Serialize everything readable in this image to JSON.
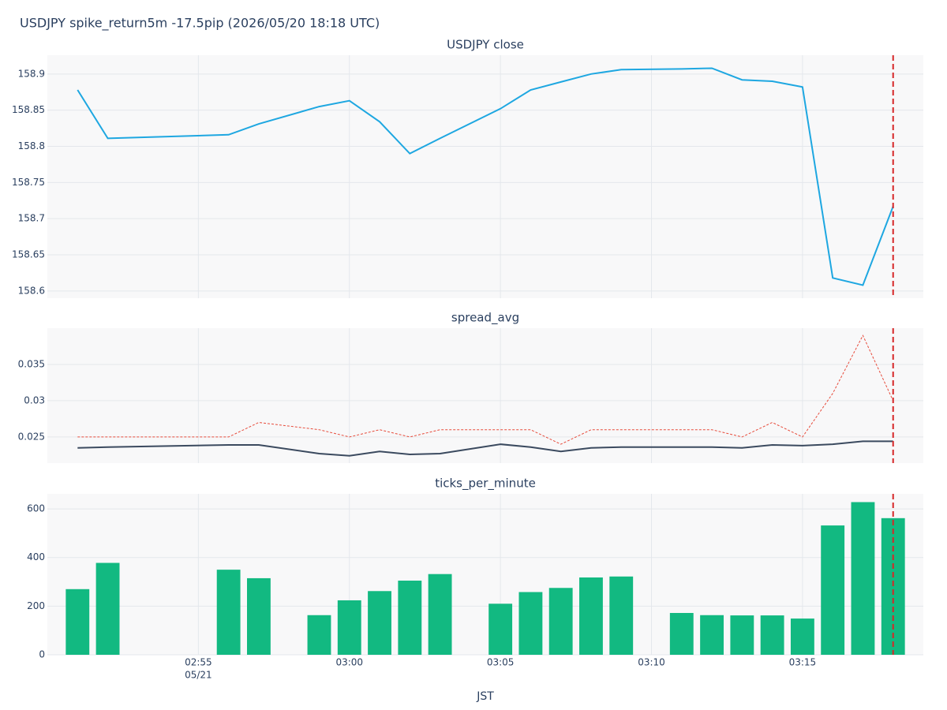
{
  "title": "USDJPY spike_return5m -17.5pip (2026/05/20 18:18 UTC)",
  "event_x": "03:18",
  "chart_data": [
    {
      "type": "line",
      "title": "USDJPY close",
      "x": [
        "02:51",
        "02:52",
        "02:56",
        "02:57",
        "02:59",
        "03:00",
        "03:01",
        "03:02",
        "03:03",
        "03:05",
        "03:06",
        "03:07",
        "03:08",
        "03:09",
        "03:11",
        "03:12",
        "03:13",
        "03:14",
        "03:15",
        "03:16",
        "03:17",
        "03:18"
      ],
      "series": [
        {
          "color": "#1ea7e1",
          "values": [
            158.878,
            158.811,
            158.816,
            158.831,
            158.855,
            158.863,
            158.834,
            158.79,
            158.811,
            158.852,
            158.878,
            158.889,
            158.9,
            158.906,
            158.907,
            158.908,
            158.892,
            158.89,
            158.882,
            158.618,
            158.608,
            158.717
          ]
        }
      ],
      "ylim": [
        158.59,
        158.926
      ],
      "yticks": [
        158.6,
        158.65,
        158.7,
        158.75,
        158.8,
        158.85,
        158.9
      ],
      "grid": true
    },
    {
      "type": "line",
      "title": "spread_avg",
      "x": [
        "02:51",
        "02:52",
        "02:56",
        "02:57",
        "02:59",
        "03:00",
        "03:01",
        "03:02",
        "03:03",
        "03:05",
        "03:06",
        "03:07",
        "03:08",
        "03:09",
        "03:11",
        "03:12",
        "03:13",
        "03:14",
        "03:15",
        "03:16",
        "03:17",
        "03:18"
      ],
      "series": [
        {
          "color": "#e74c3c",
          "dash": "dotted",
          "values": [
            0.025,
            0.025,
            0.025,
            0.027,
            0.026,
            0.025,
            0.026,
            0.025,
            0.026,
            0.026,
            0.026,
            0.024,
            0.026,
            0.026,
            0.026,
            0.026,
            0.025,
            0.027,
            0.025,
            0.031,
            0.039,
            0.03
          ]
        },
        {
          "color": "#3b4a5f",
          "values": [
            0.0235,
            0.0236,
            0.0239,
            0.0239,
            0.0227,
            0.0224,
            0.023,
            0.0226,
            0.0227,
            0.024,
            0.0236,
            0.023,
            0.0235,
            0.0236,
            0.0236,
            0.0236,
            0.0235,
            0.0239,
            0.0238,
            0.024,
            0.0244,
            0.0244
          ]
        }
      ],
      "ylim": [
        0.0214,
        0.04
      ],
      "yticks": [
        0.025,
        0.03,
        0.035
      ],
      "grid": true
    },
    {
      "type": "bar",
      "title": "ticks_per_minute",
      "x": [
        "02:51",
        "02:52",
        "02:56",
        "02:57",
        "02:59",
        "03:00",
        "03:01",
        "03:02",
        "03:03",
        "03:05",
        "03:06",
        "03:07",
        "03:08",
        "03:09",
        "03:11",
        "03:12",
        "03:13",
        "03:14",
        "03:15",
        "03:16",
        "03:17",
        "03:18"
      ],
      "series": [
        {
          "color": "#12b981",
          "values": [
            270,
            378,
            350,
            315,
            163,
            224,
            262,
            305,
            332,
            210,
            258,
            275,
            318,
            322,
            172,
            163,
            162,
            162,
            149,
            532,
            628,
            562
          ]
        }
      ],
      "ylim": [
        0,
        662
      ],
      "yticks": [
        0,
        200,
        400,
        600
      ],
      "grid": true,
      "xlim": [
        "02:50",
        "03:19"
      ],
      "xticks": [
        "02:55",
        "03:00",
        "03:05",
        "03:10",
        "03:15"
      ],
      "x_date_label": "05/21",
      "xlabel": "JST"
    }
  ]
}
